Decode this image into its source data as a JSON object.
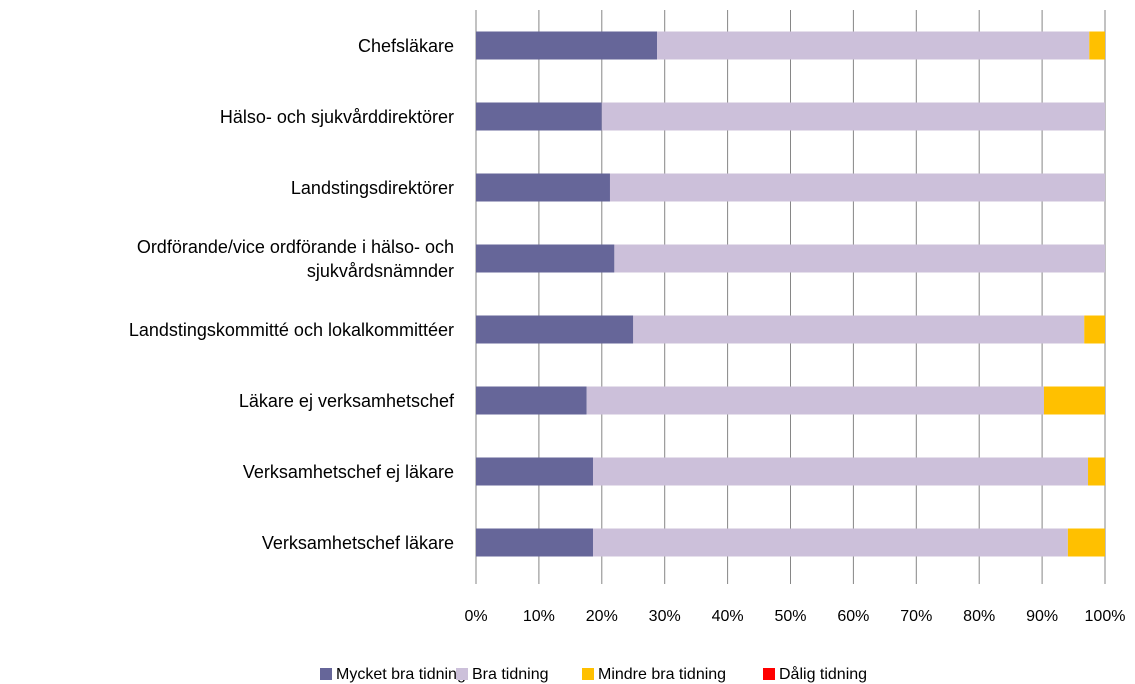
{
  "chart_data": {
    "type": "stacked_barh",
    "categories": [
      "Chefsläkare",
      "Hälso- och sjukvårddirektörer",
      "Landstingsdirektörer",
      "Ordförande/vice ordförande i hälso- och sjukvårdsnämnder",
      "Landstingskommitté och lokalkommittéer",
      "Läkare ej verksamhetschef",
      "Verksamhetschef ej läkare",
      "Verksamhetschef läkare"
    ],
    "series": [
      {
        "name": "Mycket bra tidning",
        "color": "#666699",
        "values": [
          28.8,
          20,
          21.3,
          22,
          25,
          17.6,
          18.6,
          18.6
        ]
      },
      {
        "name": "Bra tidning",
        "color": "#ccc0da",
        "values": [
          68.7,
          80,
          78.7,
          78,
          71.7,
          72.7,
          78.7,
          75.5
        ]
      },
      {
        "name": "Mindre bra tidning",
        "color": "#ffc000",
        "values": [
          2.5,
          0,
          0,
          0,
          3.3,
          9.7,
          2.7,
          5.9
        ]
      },
      {
        "name": "Dålig tidning",
        "color": "#ff0000",
        "values": [
          0,
          0,
          0,
          0,
          0,
          0,
          0,
          0
        ]
      }
    ],
    "xlim": [
      0,
      100
    ],
    "xticks": [
      {
        "value": 0,
        "label": "0%"
      },
      {
        "value": 10,
        "label": "10%"
      },
      {
        "value": 20,
        "label": "20%"
      },
      {
        "value": 30,
        "label": "30%"
      },
      {
        "value": 40,
        "label": "40%"
      },
      {
        "value": 50,
        "label": "50%"
      },
      {
        "value": 60,
        "label": "60%"
      },
      {
        "value": 70,
        "label": "70%"
      },
      {
        "value": 80,
        "label": "80%"
      },
      {
        "value": 90,
        "label": "90%"
      },
      {
        "value": 100,
        "label": "100%"
      }
    ],
    "grid": true,
    "legend": "bottom"
  }
}
